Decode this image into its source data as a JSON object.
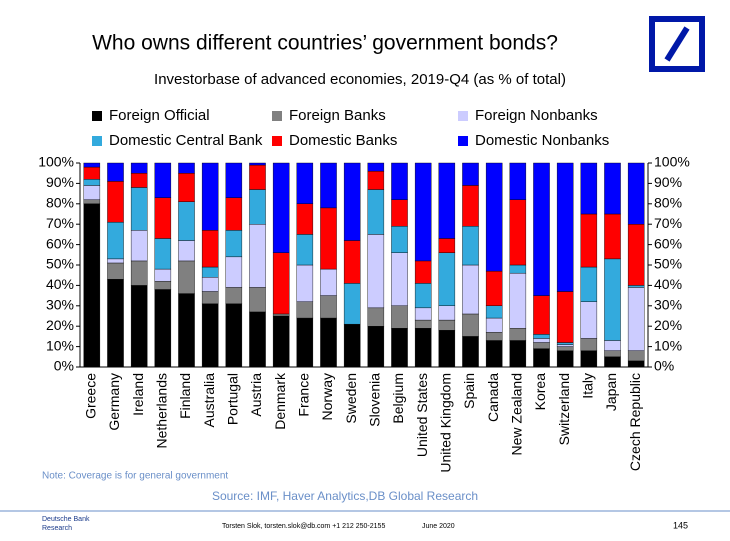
{
  "chart_data": {
    "type": "bar",
    "stacked": true,
    "title": "Who owns different countries’ government bonds?",
    "subtitle": "Investorbase of advanced economies, 2019-Q4 (as % of total)",
    "categories": [
      "Greece",
      "Germany",
      "Ireland",
      "Netherlands",
      "Finland",
      "Australia",
      "Portugal",
      "Austria",
      "Denmark",
      "France",
      "Norway",
      "Sweden",
      "Slovenia",
      "Belgium",
      "United States",
      "United Kingdom",
      "Spain",
      "Canada",
      "New Zealand",
      "Korea",
      "Switzerland",
      "Italy",
      "Japan",
      "Czech Republic"
    ],
    "series": [
      {
        "name": "Foreign Official",
        "color": "#000000",
        "values": [
          80,
          43,
          40,
          38,
          36,
          31,
          31,
          27,
          25,
          24,
          24,
          21,
          20,
          19,
          19,
          18,
          15,
          13,
          13,
          9,
          8,
          8,
          5,
          3
        ]
      },
      {
        "name": "Foreign Banks",
        "color": "#808080",
        "values": [
          2,
          8,
          12,
          4,
          16,
          6,
          8,
          12,
          1,
          8,
          11,
          0,
          9,
          11,
          4,
          5,
          11,
          4,
          6,
          3,
          2,
          6,
          3,
          5
        ]
      },
      {
        "name": "Foreign Nonbanks",
        "color": "#ccccff",
        "values": [
          7,
          2,
          15,
          6,
          10,
          7,
          15,
          31,
          0,
          18,
          13,
          0,
          36,
          26,
          6,
          7,
          24,
          7,
          27,
          2,
          1,
          18,
          5,
          31
        ]
      },
      {
        "name": "Domestic Central Bank",
        "color": "#33aadd",
        "values": [
          3,
          18,
          21,
          15,
          19,
          5,
          13,
          17,
          0,
          15,
          0,
          20,
          22,
          13,
          12,
          26,
          19,
          6,
          4,
          2,
          1,
          17,
          40,
          1
        ]
      },
      {
        "name": "Domestic Banks",
        "color": "#ff0000",
        "values": [
          6,
          20,
          7,
          20,
          14,
          18,
          16,
          12,
          30,
          15,
          30,
          21,
          9,
          13,
          11,
          7,
          20,
          17,
          32,
          19,
          25,
          26,
          22,
          30
        ]
      },
      {
        "name": "Domestic Nonbanks",
        "color": "#0000ff",
        "values": [
          2,
          9,
          5,
          17,
          5,
          33,
          17,
          1,
          44,
          20,
          22,
          38,
          4,
          18,
          48,
          37,
          11,
          53,
          18,
          65,
          63,
          25,
          25,
          30
        ]
      }
    ],
    "ylim": [
      0,
      100
    ],
    "yticks": [
      {
        "value": 0,
        "label": "0%"
      },
      {
        "value": 10,
        "label": "10%"
      },
      {
        "value": 20,
        "label": "20%"
      },
      {
        "value": 30,
        "label": "30%"
      },
      {
        "value": 40,
        "label": "40%"
      },
      {
        "value": 50,
        "label": "50%"
      },
      {
        "value": 60,
        "label": "60%"
      },
      {
        "value": 70,
        "label": "70%"
      },
      {
        "value": 80,
        "label": "80%"
      },
      {
        "value": 90,
        "label": "90%"
      },
      {
        "value": 100,
        "label": "100%"
      }
    ],
    "y2lim": [
      0,
      100
    ],
    "y2ticks": [
      {
        "value": 0,
        "label": "0%"
      },
      {
        "value": 10,
        "label": "10%"
      },
      {
        "value": 20,
        "label": "20%"
      },
      {
        "value": 30,
        "label": "30%"
      },
      {
        "value": 40,
        "label": "40%"
      },
      {
        "value": 50,
        "label": "50%"
      },
      {
        "value": 60,
        "label": "60%"
      },
      {
        "value": 70,
        "label": "70%"
      },
      {
        "value": 80,
        "label": "80%"
      },
      {
        "value": 90,
        "label": "90%"
      },
      {
        "value": 100,
        "label": "100%"
      }
    ],
    "note": "Note: Coverage is for general government",
    "source": "Source: IMF, Haver Analytics,DB Global Research"
  },
  "footer": {
    "org_line1": "Deutsche Bank",
    "org_line2": "Research",
    "author": "Torsten Slok, torsten.slok@db.com  +1 212 250-2155",
    "date": "June 2020",
    "page": "145"
  }
}
